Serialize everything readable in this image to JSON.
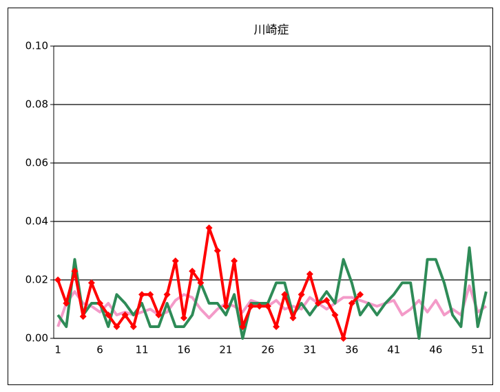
{
  "chart_data": {
    "type": "line",
    "title": "川崎症",
    "categories": [
      "1",
      null,
      null,
      null,
      null,
      "6",
      null,
      null,
      null,
      null,
      "11",
      null,
      null,
      null,
      null,
      "16",
      null,
      null,
      null,
      null,
      "21",
      null,
      null,
      null,
      null,
      "26",
      null,
      null,
      null,
      null,
      "31",
      null,
      null,
      null,
      null,
      "36",
      null,
      null,
      null,
      null,
      "41",
      null,
      null,
      null,
      null,
      "46",
      null,
      null,
      null,
      null,
      "51",
      null
    ],
    "ylim": [
      0,
      0.1
    ],
    "yticks": [
      {
        "value": 0,
        "label": "0.00"
      },
      {
        "value": 0.02,
        "label": "0.02"
      },
      {
        "value": 0.04,
        "label": "0.04"
      },
      {
        "value": 0.06,
        "label": "0.06"
      },
      {
        "value": 0.08,
        "label": "0.08"
      },
      {
        "value": 0.1,
        "label": "0.10"
      }
    ],
    "grid": true,
    "series": [
      {
        "color": "#f39ac8",
        "values": [
          0.004,
          0.012,
          0.016,
          0.012,
          0.011,
          0.009,
          0.012,
          0.008,
          0.009,
          0.008,
          0.009,
          0.01,
          0.008,
          0.009,
          0.013,
          0.015,
          0.014,
          0.01,
          0.007,
          0.01,
          0.012,
          0.011,
          0.009,
          0.013,
          0.012,
          0.011,
          0.013,
          0.01,
          0.011,
          0.01,
          0.014,
          0.012,
          0.01,
          0.012,
          0.014,
          0.014,
          0.013,
          0.012,
          0.011,
          0.012,
          0.013,
          0.008,
          0.01,
          0.013,
          0.009,
          0.013,
          0.008,
          0.01,
          0.008,
          0.018,
          0.009,
          0.011
        ]
      },
      {
        "color": "#2e8b57",
        "values": [
          0.008,
          0.004,
          0.027,
          0.008,
          0.012,
          0.012,
          0.004,
          0.015,
          0.012,
          0.008,
          0.012,
          0.004,
          0.004,
          0.012,
          0.004,
          0.004,
          0.008,
          0.019,
          0.012,
          0.012,
          0.008,
          0.015,
          0.0,
          0.012,
          0.012,
          0.012,
          0.019,
          0.019,
          0.008,
          0.012,
          0.008,
          0.012,
          0.016,
          0.012,
          0.027,
          0.019,
          0.008,
          0.012,
          0.008,
          0.012,
          0.015,
          0.019,
          0.019,
          0.0,
          0.027,
          0.027,
          0.019,
          0.008,
          0.004,
          0.031,
          0.004,
          0.016
        ]
      },
      {
        "color": "#ff0000",
        "marker": "diamond",
        "values": [
          0.02,
          0.012,
          0.023,
          0.0075,
          0.019,
          0.012,
          0.008,
          0.004,
          0.008,
          0.004,
          0.015,
          0.015,
          0.008,
          0.015,
          0.0265,
          0.007,
          0.023,
          0.019,
          0.0378,
          0.03,
          0.011,
          0.0265,
          0.004,
          0.011,
          0.011,
          0.011,
          0.004,
          0.015,
          0.007,
          0.015,
          0.022,
          0.012,
          0.013,
          0.008,
          0.0,
          0.012,
          0.015,
          null,
          null,
          null,
          null,
          null,
          null,
          null,
          null,
          null,
          null,
          null,
          null,
          null,
          null,
          null
        ]
      }
    ]
  }
}
